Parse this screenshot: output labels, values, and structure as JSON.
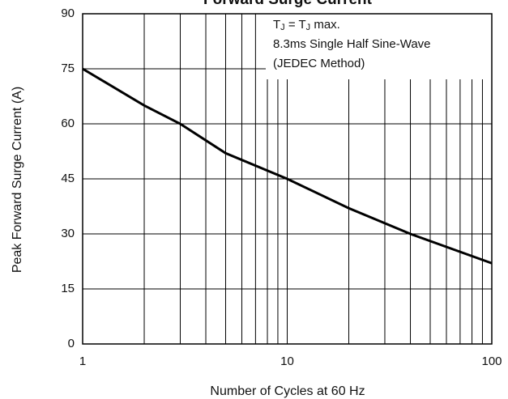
{
  "chart_data": {
    "type": "line",
    "title": "Forward Surge Current",
    "x_label": "Number of Cycles at 60 Hz",
    "y_label": "Peak Forward Surge Current (A)",
    "annotation": [
      [
        "T",
        "J",
        " = T",
        "J",
        " max."
      ],
      [
        "8.3ms Single Half Sine-Wave"
      ],
      [
        "(JEDEC Method)"
      ]
    ],
    "x": [
      1,
      2,
      3,
      5,
      10,
      20,
      40,
      100
    ],
    "series": [
      {
        "color": "#000000",
        "values": [
          75,
          65,
          60,
          52,
          45,
          37,
          30,
          22
        ]
      }
    ],
    "xlim": [
      1,
      100
    ],
    "xticks": [
      1,
      10,
      100
    ],
    "xscale": "log",
    "ylim": [
      0,
      90
    ],
    "yticks": [
      0,
      15,
      30,
      45,
      60,
      75,
      90
    ],
    "grid": true
  }
}
